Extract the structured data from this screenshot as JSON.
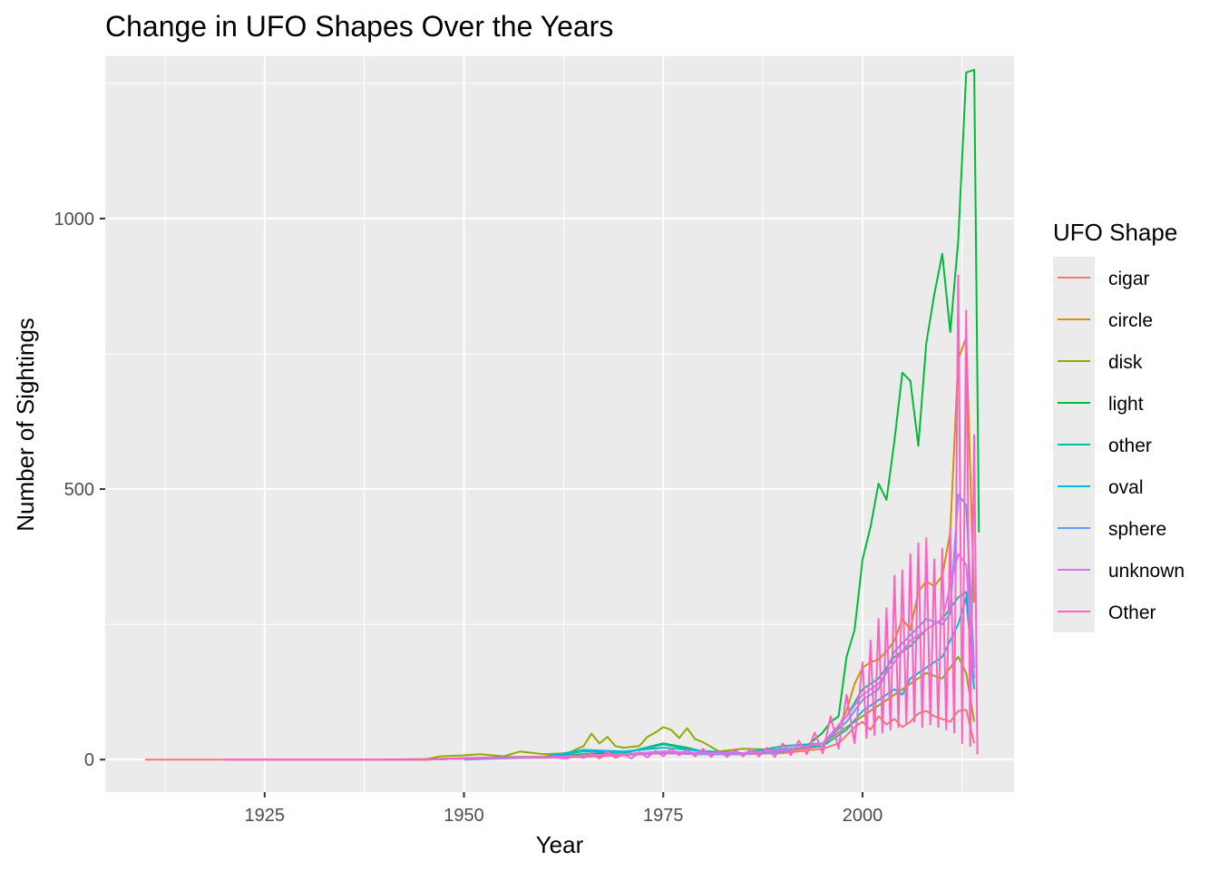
{
  "chart_data": {
    "type": "line",
    "title": "Change in UFO Shapes Over the Years",
    "xlabel": "Year",
    "ylabel": "Number of Sightings",
    "xlim": [
      1905,
      2019
    ],
    "ylim": [
      -60,
      1300
    ],
    "x_ticks": [
      1925,
      1950,
      1975,
      2000
    ],
    "y_ticks": [
      0,
      500,
      1000
    ],
    "grid": true,
    "legend": {
      "title": "UFO Shape",
      "position": "right"
    },
    "series": [
      {
        "name": "cigar",
        "color": "#F8766D",
        "points": [
          [
            1910,
            0
          ],
          [
            1920,
            0
          ],
          [
            1945,
            0
          ],
          [
            1950,
            2
          ],
          [
            1955,
            3
          ],
          [
            1960,
            3
          ],
          [
            1965,
            5
          ],
          [
            1970,
            8
          ],
          [
            1975,
            12
          ],
          [
            1980,
            10
          ],
          [
            1985,
            10
          ],
          [
            1990,
            12
          ],
          [
            1995,
            20
          ],
          [
            1997,
            30
          ],
          [
            1998,
            45
          ],
          [
            1999,
            60
          ],
          [
            2000,
            70
          ],
          [
            2001,
            55
          ],
          [
            2002,
            80
          ],
          [
            2003,
            65
          ],
          [
            2004,
            75
          ],
          [
            2005,
            60
          ],
          [
            2006,
            70
          ],
          [
            2007,
            85
          ],
          [
            2008,
            90
          ],
          [
            2009,
            80
          ],
          [
            2010,
            75
          ],
          [
            2011,
            70
          ],
          [
            2012,
            90
          ],
          [
            2013,
            92
          ],
          [
            2014,
            30
          ]
        ]
      },
      {
        "name": "circle",
        "color": "#D39200",
        "points": [
          [
            1940,
            0
          ],
          [
            1950,
            2
          ],
          [
            1955,
            3
          ],
          [
            1960,
            4
          ],
          [
            1965,
            8
          ],
          [
            1970,
            10
          ],
          [
            1975,
            15
          ],
          [
            1980,
            12
          ],
          [
            1985,
            12
          ],
          [
            1990,
            15
          ],
          [
            1995,
            25
          ],
          [
            1997,
            60
          ],
          [
            1998,
            90
          ],
          [
            1999,
            140
          ],
          [
            2000,
            170
          ],
          [
            2001,
            180
          ],
          [
            2002,
            185
          ],
          [
            2003,
            200
          ],
          [
            2004,
            220
          ],
          [
            2005,
            260
          ],
          [
            2006,
            240
          ],
          [
            2007,
            310
          ],
          [
            2008,
            330
          ],
          [
            2009,
            320
          ],
          [
            2010,
            340
          ],
          [
            2011,
            420
          ],
          [
            2012,
            740
          ],
          [
            2013,
            780
          ],
          [
            2014,
            290
          ]
        ]
      },
      {
        "name": "disk",
        "color": "#93AA00",
        "points": [
          [
            1945,
            0
          ],
          [
            1947,
            6
          ],
          [
            1950,
            8
          ],
          [
            1952,
            10
          ],
          [
            1955,
            6
          ],
          [
            1957,
            15
          ],
          [
            1960,
            10
          ],
          [
            1963,
            12
          ],
          [
            1965,
            25
          ],
          [
            1966,
            48
          ],
          [
            1967,
            30
          ],
          [
            1968,
            42
          ],
          [
            1969,
            25
          ],
          [
            1970,
            22
          ],
          [
            1972,
            25
          ],
          [
            1973,
            42
          ],
          [
            1974,
            50
          ],
          [
            1975,
            60
          ],
          [
            1976,
            55
          ],
          [
            1977,
            40
          ],
          [
            1978,
            58
          ],
          [
            1979,
            38
          ],
          [
            1980,
            32
          ],
          [
            1982,
            15
          ],
          [
            1985,
            20
          ],
          [
            1990,
            18
          ],
          [
            1995,
            30
          ],
          [
            1998,
            60
          ],
          [
            2000,
            80
          ],
          [
            2002,
            100
          ],
          [
            2004,
            120
          ],
          [
            2006,
            140
          ],
          [
            2008,
            160
          ],
          [
            2010,
            150
          ],
          [
            2012,
            190
          ],
          [
            2013,
            160
          ],
          [
            2014,
            70
          ]
        ]
      },
      {
        "name": "light",
        "color": "#00BA38",
        "points": [
          [
            1945,
            0
          ],
          [
            1950,
            2
          ],
          [
            1955,
            5
          ],
          [
            1960,
            5
          ],
          [
            1965,
            10
          ],
          [
            1970,
            12
          ],
          [
            1975,
            30
          ],
          [
            1978,
            22
          ],
          [
            1980,
            15
          ],
          [
            1985,
            12
          ],
          [
            1990,
            15
          ],
          [
            1993,
            25
          ],
          [
            1995,
            50
          ],
          [
            1996,
            70
          ],
          [
            1997,
            80
          ],
          [
            1998,
            190
          ],
          [
            1999,
            240
          ],
          [
            2000,
            370
          ],
          [
            2001,
            430
          ],
          [
            2002,
            510
          ],
          [
            2003,
            480
          ],
          [
            2004,
            590
          ],
          [
            2005,
            715
          ],
          [
            2006,
            700
          ],
          [
            2007,
            580
          ],
          [
            2008,
            770
          ],
          [
            2009,
            860
          ],
          [
            2010,
            935
          ],
          [
            2011,
            790
          ],
          [
            2012,
            960
          ],
          [
            2013,
            1270
          ],
          [
            2014,
            1275
          ],
          [
            2014.6,
            420
          ]
        ]
      },
      {
        "name": "other",
        "color": "#00C19F",
        "points": [
          [
            1945,
            0
          ],
          [
            1950,
            2
          ],
          [
            1955,
            3
          ],
          [
            1960,
            5
          ],
          [
            1965,
            15
          ],
          [
            1970,
            12
          ],
          [
            1975,
            28
          ],
          [
            1980,
            15
          ],
          [
            1985,
            12
          ],
          [
            1990,
            25
          ],
          [
            1995,
            30
          ],
          [
            1998,
            80
          ],
          [
            2000,
            130
          ],
          [
            2002,
            150
          ],
          [
            2004,
            190
          ],
          [
            2006,
            210
          ],
          [
            2008,
            240
          ],
          [
            2010,
            260
          ],
          [
            2012,
            300
          ],
          [
            2013,
            310
          ],
          [
            2014,
            150
          ]
        ]
      },
      {
        "name": "oval",
        "color": "#00B9E3",
        "points": [
          [
            1945,
            0
          ],
          [
            1950,
            2
          ],
          [
            1955,
            4
          ],
          [
            1960,
            5
          ],
          [
            1965,
            18
          ],
          [
            1970,
            15
          ],
          [
            1975,
            22
          ],
          [
            1980,
            16
          ],
          [
            1985,
            12
          ],
          [
            1990,
            20
          ],
          [
            1995,
            25
          ],
          [
            1998,
            55
          ],
          [
            2000,
            90
          ],
          [
            2002,
            110
          ],
          [
            2004,
            130
          ],
          [
            2005,
            120
          ],
          [
            2006,
            150
          ],
          [
            2008,
            170
          ],
          [
            2010,
            190
          ],
          [
            2012,
            250
          ],
          [
            2013,
            300
          ],
          [
            2014,
            130
          ]
        ]
      },
      {
        "name": "sphere",
        "color": "#619CFF",
        "points": [
          [
            1950,
            0
          ],
          [
            1955,
            2
          ],
          [
            1960,
            4
          ],
          [
            1965,
            8
          ],
          [
            1970,
            10
          ],
          [
            1975,
            12
          ],
          [
            1980,
            10
          ],
          [
            1985,
            10
          ],
          [
            1990,
            15
          ],
          [
            1995,
            30
          ],
          [
            1998,
            70
          ],
          [
            2000,
            110
          ],
          [
            2002,
            130
          ],
          [
            2004,
            200
          ],
          [
            2006,
            230
          ],
          [
            2008,
            260
          ],
          [
            2010,
            250
          ],
          [
            2011,
            270
          ],
          [
            2012,
            490
          ],
          [
            2013,
            470
          ],
          [
            2014,
            170
          ]
        ]
      },
      {
        "name": "unknown",
        "color": "#DB72FB",
        "points": [
          [
            1920,
            0
          ],
          [
            1945,
            0
          ],
          [
            1950,
            2
          ],
          [
            1955,
            3
          ],
          [
            1960,
            4
          ],
          [
            1965,
            8
          ],
          [
            1970,
            10
          ],
          [
            1975,
            15
          ],
          [
            1980,
            12
          ],
          [
            1985,
            12
          ],
          [
            1990,
            18
          ],
          [
            1995,
            30
          ],
          [
            1998,
            80
          ],
          [
            2000,
            120
          ],
          [
            2002,
            140
          ],
          [
            2004,
            180
          ],
          [
            2006,
            220
          ],
          [
            2008,
            240
          ],
          [
            2010,
            260
          ],
          [
            2012,
            380
          ],
          [
            2013,
            360
          ],
          [
            2014,
            150
          ]
        ]
      },
      {
        "name": "Other",
        "color": "#FF61C3",
        "points": [
          [
            1920,
            0
          ],
          [
            1945,
            0
          ],
          [
            1950,
            3
          ],
          [
            1955,
            4
          ],
          [
            1960,
            5
          ],
          [
            1963,
            2
          ],
          [
            1964,
            8
          ],
          [
            1965,
            3
          ],
          [
            1966,
            12
          ],
          [
            1967,
            2
          ],
          [
            1968,
            15
          ],
          [
            1969,
            3
          ],
          [
            1970,
            10
          ],
          [
            1971,
            2
          ],
          [
            1972,
            14
          ],
          [
            1973,
            4
          ],
          [
            1974,
            16
          ],
          [
            1975,
            6
          ],
          [
            1976,
            20
          ],
          [
            1977,
            8
          ],
          [
            1978,
            18
          ],
          [
            1979,
            6
          ],
          [
            1980,
            20
          ],
          [
            1981,
            5
          ],
          [
            1982,
            16
          ],
          [
            1983,
            5
          ],
          [
            1984,
            18
          ],
          [
            1985,
            6
          ],
          [
            1986,
            20
          ],
          [
            1987,
            6
          ],
          [
            1988,
            22
          ],
          [
            1989,
            5
          ],
          [
            1990,
            30
          ],
          [
            1991,
            8
          ],
          [
            1992,
            35
          ],
          [
            1993,
            10
          ],
          [
            1994,
            50
          ],
          [
            1995,
            12
          ],
          [
            1996,
            80
          ],
          [
            1997,
            20
          ],
          [
            1998,
            120
          ],
          [
            1999,
            30
          ],
          [
            2000,
            180
          ],
          [
            2000.5,
            40
          ],
          [
            2001,
            220
          ],
          [
            2001.5,
            45
          ],
          [
            2002,
            260
          ],
          [
            2002.5,
            50
          ],
          [
            2003,
            280
          ],
          [
            2003.5,
            55
          ],
          [
            2004,
            340
          ],
          [
            2004.5,
            60
          ],
          [
            2005,
            350
          ],
          [
            2005.5,
            65
          ],
          [
            2006,
            380
          ],
          [
            2006.5,
            70
          ],
          [
            2007,
            400
          ],
          [
            2007.5,
            60
          ],
          [
            2008,
            410
          ],
          [
            2008.5,
            65
          ],
          [
            2009,
            370
          ],
          [
            2009.5,
            60
          ],
          [
            2010,
            390
          ],
          [
            2010.5,
            55
          ],
          [
            2011,
            430
          ],
          [
            2011.5,
            50
          ],
          [
            2012,
            895
          ],
          [
            2012.5,
            30
          ],
          [
            2013,
            830
          ],
          [
            2013.5,
            25
          ],
          [
            2014,
            600
          ],
          [
            2014.4,
            10
          ]
        ]
      }
    ]
  }
}
